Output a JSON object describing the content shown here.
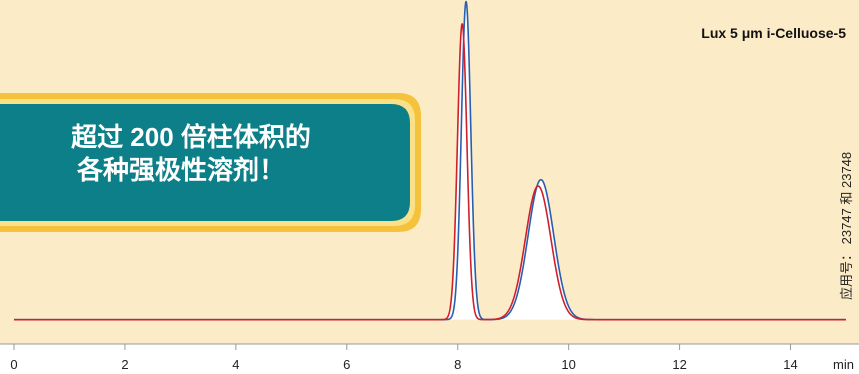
{
  "chart_data": {
    "type": "line",
    "title": "Lux 5 μm i-Celluose-5",
    "xlabel": "min",
    "ylabel": "",
    "xlim": [
      0,
      15
    ],
    "x_ticks": [
      0,
      2,
      4,
      6,
      8,
      10,
      12,
      14
    ],
    "tick_labels": [
      "0",
      "2",
      "4",
      "6",
      "8",
      "10",
      "12",
      "14"
    ],
    "grid": false,
    "baseline": 0.02,
    "series": [
      {
        "color": "#2a5fb0",
        "peaks": [
          {
            "rt": 8.15,
            "height": 1.0,
            "width": 0.085
          },
          {
            "rt": 9.5,
            "height": 0.44,
            "width": 0.23
          }
        ]
      },
      {
        "color": "#d0202a",
        "peaks": [
          {
            "rt": 8.08,
            "height": 0.93,
            "width": 0.085
          },
          {
            "rt": 9.45,
            "height": 0.42,
            "width": 0.23
          }
        ]
      }
    ]
  },
  "annotations": {
    "column": "Lux 5 μm i-Celluose-5",
    "callout_line1": "超过 200 倍柱体积的",
    "callout_line2": "各种强极性溶剂！",
    "application_no": "应用号： 23747 和 23748"
  },
  "colors": {
    "panel_bg": "#fcebc7",
    "callout_fill": "#0d7f88",
    "callout_border": "#f5c33b"
  }
}
